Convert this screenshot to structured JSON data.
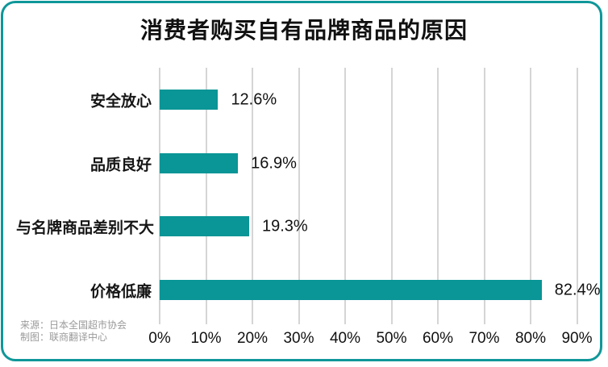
{
  "title": "消费者购买自有品牌商品的原因",
  "chart_data": {
    "type": "bar",
    "orientation": "horizontal",
    "title": "消费者购买自有品牌商品的原因",
    "categories": [
      "安全放心",
      "品质良好",
      "与名牌商品差别不大",
      "价格低廉"
    ],
    "values": [
      12.6,
      16.9,
      19.3,
      82.4
    ],
    "value_labels": [
      "12.6%",
      "16.9%",
      "19.3%",
      "82.4%"
    ],
    "x_ticks": [
      "0%",
      "10%",
      "20%",
      "30%",
      "40%",
      "50%",
      "60%",
      "70%",
      "80%",
      "90%"
    ],
    "x_tick_values": [
      0,
      10,
      20,
      30,
      40,
      50,
      60,
      70,
      80,
      90
    ],
    "xlim": [
      0,
      90
    ],
    "grid": "vertical",
    "bar_color": "#0a9596",
    "gridline_color": "#d5d5d5",
    "accent_border_color": "#0f9799"
  },
  "source": {
    "line1": "来源：日本全国超市协会",
    "line2": "制图：联商翻译中心"
  }
}
